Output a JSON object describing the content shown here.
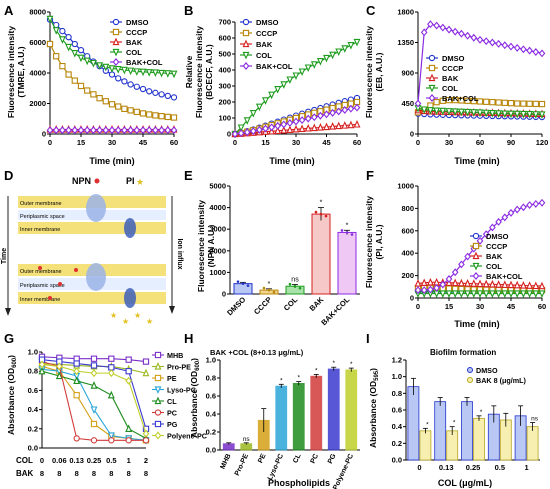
{
  "colors": {
    "DMSO": "#2233cc",
    "CCCP": "#b8860b",
    "BAK": "#d62020",
    "COL": "#1e9c1e",
    "BAK+COL": "#8a2be2",
    "MHB": "#7a2fc8",
    "Pro-PE": "#9bb81e",
    "PE": "#d4a017",
    "Lyso-PC": "#2ba6d8",
    "CL": "#1e8c1e",
    "PC": "#d23c3c",
    "PG": "#3b3bd1",
    "Polyene-PC": "#bfcf2a"
  },
  "panels": {
    "A": {
      "label": "A",
      "ylabel": "Fluorescence intensity",
      "ylabel2": "(TMRE, A.U.)",
      "xlabel": "Time (min)",
      "xticks": [
        "0",
        "15",
        "30",
        "45",
        "60"
      ],
      "yticks": [
        "0",
        "2000",
        "4000",
        "6000",
        "8000"
      ]
    },
    "B": {
      "label": "B",
      "ylabel": "Relative",
      "ylabel2": "Fluorescence intensity",
      "ylabel3": "(BCECF, A.U.)",
      "xlabel": "Time (min)",
      "xticks": [
        "0",
        "15",
        "30",
        "45",
        "60"
      ],
      "yticks": [
        "0",
        "100",
        "200",
        "300",
        "400",
        "500",
        "600",
        "700"
      ]
    },
    "C": {
      "label": "C",
      "ylabel": "Fluorescence intensity",
      "ylabel2": "(EB, A.U.)",
      "xlabel": "Time (min)",
      "xticks": [
        "0",
        "30",
        "60",
        "90",
        "120"
      ],
      "yticks": [
        "0",
        "450",
        "900",
        "1350",
        "1800"
      ]
    },
    "D": {
      "label": "D",
      "npn": "NPN",
      "pi": "PI",
      "time": "Time",
      "outer1": "Outer membrane",
      "peri1": "Periplasmic space",
      "inner1": "Inner membrane",
      "outer2": "Outer membrane",
      "peri2": "Periplasmic space",
      "inner2": "Inner membrane",
      "influx": "Ion influx"
    },
    "E": {
      "label": "E",
      "ylabel": "Fluorescence intensity",
      "ylabel2": "(NPN A.U.)",
      "yticks": [
        "0",
        "1000",
        "2000",
        "3000",
        "4000",
        "5000"
      ],
      "categories": [
        "DMSO",
        "CCCP",
        "COL",
        "BAK",
        "BAK+COL"
      ],
      "annotations": [
        "",
        "*",
        "ns",
        "*",
        "*"
      ]
    },
    "F": {
      "label": "F",
      "ylabel": "Fluorescence intensity",
      "ylabel2": "(PI, A.U.)",
      "xlabel": "Time (min)",
      "xticks": [
        "0",
        "15",
        "30",
        "45",
        "60"
      ],
      "yticks": [
        "0",
        "200",
        "400",
        "600",
        "800",
        "1000"
      ]
    },
    "G": {
      "label": "G",
      "ylabel": "Absorbance (OD",
      "ylabel_sub": "600",
      "ylabel_end": ")",
      "yticks": [
        "0.0",
        "0.2",
        "0.4",
        "0.6",
        "0.8",
        "1.0"
      ],
      "row1_label": "COL",
      "row2_label": "BAK",
      "row1": [
        "0",
        "0.06",
        "0.13",
        "0.25",
        "0.5",
        "1",
        "2"
      ],
      "row2": [
        "8",
        "8",
        "8",
        "8",
        "8",
        "8",
        "8"
      ]
    },
    "H": {
      "label": "H",
      "title": "BAK +COL (8+0.13 μg/mL)",
      "ylabel": "Absorbance (OD",
      "ylabel_sub": "600",
      "ylabel_end": ")",
      "xlabel": "Phospholipids",
      "yticks": [
        "0.0",
        "0.2",
        "0.4",
        "0.6",
        "0.8",
        "1.0"
      ],
      "categories": [
        "MHB",
        "Pro-PE",
        "PE",
        "Lyso-PC",
        "CL",
        "PC",
        "PG",
        "Polyene-PC"
      ],
      "annotations": [
        "",
        "ns",
        "",
        "*",
        "*",
        "*",
        "*",
        "*"
      ]
    },
    "I": {
      "label": "I",
      "title": "Biofilm formation",
      "ylabel": "Absorbance (OD",
      "ylabel_sub": "595",
      "ylabel_end": ")",
      "xlabel": "COL (μg/mL)",
      "yticks": [
        "0.0",
        "0.2",
        "0.4",
        "0.6",
        "0.8",
        "1.0",
        "1.2"
      ],
      "categories": [
        "0",
        "0.13",
        "0.25",
        "0.5",
        "1"
      ],
      "legend": [
        "DMSO",
        "BAK 8 (μg/mL)"
      ],
      "annotations": [
        "*",
        "*",
        "*",
        "",
        "ns"
      ]
    }
  },
  "legends": {
    "A": [
      "DMSO",
      "CCCP",
      "BAK",
      "COL",
      "BAK+COL"
    ],
    "B": [
      "DMSO",
      "CCCP",
      "BAK",
      "COL",
      "BAK+COL"
    ],
    "C": [
      "DMSO",
      "CCCP",
      "BAK",
      "COL",
      "BAK+COL"
    ],
    "F": [
      "DMSO",
      "CCCP",
      "BAK",
      "COL",
      "BAK+COL"
    ],
    "G": [
      "MHB",
      "Pro-PE",
      "PE",
      "Lyso-PC",
      "CL",
      "PC",
      "PG",
      "Polyene-PC"
    ]
  },
  "chart_data": [
    {
      "panel": "A",
      "type": "line",
      "xlabel": "Time (min)",
      "ylabel": "Fluorescence intensity (TMRE, A.U.)",
      "xlim": [
        0,
        60
      ],
      "ylim": [
        0,
        8000
      ],
      "x": [
        0,
        3,
        6,
        9,
        12,
        15,
        18,
        21,
        24,
        27,
        30,
        33,
        36,
        39,
        42,
        45,
        48,
        51,
        54,
        57,
        60
      ],
      "series": [
        {
          "name": "DMSO",
          "values": [
            7500,
            7150,
            6750,
            6350,
            5900,
            5500,
            5100,
            4750,
            4450,
            4150,
            3900,
            3650,
            3450,
            3250,
            3100,
            2950,
            2800,
            2700,
            2600,
            2500,
            2400
          ]
        },
        {
          "name": "CCCP",
          "values": [
            5900,
            5100,
            4450,
            3900,
            3500,
            3150,
            2850,
            2600,
            2350,
            2150,
            1950,
            1800,
            1650,
            1550,
            1450,
            1350,
            1280,
            1220,
            1170,
            1120,
            1080
          ]
        },
        {
          "name": "BAK",
          "values": [
            300,
            300,
            300,
            300,
            300,
            300,
            300,
            300,
            300,
            300,
            300,
            300,
            300,
            300,
            300,
            300,
            300,
            300,
            300,
            300,
            300
          ]
        },
        {
          "name": "COL",
          "values": [
            7550,
            6800,
            6200,
            5700,
            5300,
            5000,
            4800,
            4650,
            4500,
            4400,
            4300,
            4250,
            4200,
            4150,
            4100,
            4080,
            4050,
            4030,
            4000,
            3980,
            3950
          ]
        },
        {
          "name": "BAK+COL",
          "values": [
            250,
            250,
            250,
            250,
            250,
            250,
            250,
            250,
            250,
            250,
            250,
            250,
            250,
            250,
            250,
            250,
            250,
            250,
            250,
            250,
            250
          ]
        }
      ]
    },
    {
      "panel": "B",
      "type": "line",
      "xlabel": "Time (min)",
      "ylabel": "Relative Fluorescence intensity (BCECF, A.U.)",
      "xlim": [
        0,
        60
      ],
      "ylim": [
        0,
        700
      ],
      "x": [
        0,
        3,
        6,
        9,
        12,
        15,
        18,
        21,
        24,
        27,
        30,
        33,
        36,
        39,
        42,
        45,
        48,
        51,
        54,
        57,
        60
      ],
      "series": [
        {
          "name": "DMSO",
          "values": [
            0,
            8,
            18,
            28,
            40,
            52,
            65,
            77,
            90,
            102,
            115,
            127,
            139,
            150,
            162,
            173,
            184,
            195,
            205,
            215,
            225
          ]
        },
        {
          "name": "CCCP",
          "values": [
            0,
            6,
            14,
            24,
            34,
            45,
            56,
            67,
            78,
            89,
            100,
            111,
            122,
            132,
            142,
            152,
            162,
            172,
            181,
            190,
            200
          ]
        },
        {
          "name": "BAK",
          "values": [
            0,
            2,
            5,
            8,
            11,
            14,
            17,
            20,
            23,
            26,
            29,
            32,
            35,
            38,
            41,
            44,
            47,
            50,
            53,
            56,
            60
          ]
        },
        {
          "name": "COL",
          "values": [
            0,
            40,
            85,
            130,
            170,
            210,
            245,
            280,
            310,
            340,
            365,
            390,
            415,
            435,
            455,
            475,
            495,
            515,
            535,
            555,
            575
          ]
        },
        {
          "name": "BAK+COL",
          "values": [
            0,
            5,
            11,
            18,
            26,
            34,
            42,
            51,
            60,
            69,
            78,
            87,
            96,
            105,
            114,
            123,
            132,
            141,
            150,
            158,
            165
          ]
        }
      ]
    },
    {
      "panel": "C",
      "type": "line",
      "xlabel": "Time (min)",
      "ylabel": "Fluorescence intensity (EB, A.U.)",
      "xlim": [
        0,
        120
      ],
      "ylim": [
        0,
        1800
      ],
      "x": [
        0,
        6,
        12,
        18,
        24,
        30,
        36,
        42,
        48,
        54,
        60,
        66,
        72,
        78,
        84,
        90,
        96,
        102,
        108,
        114,
        120
      ],
      "series": [
        {
          "name": "DMSO",
          "values": [
            300,
            295,
            290,
            285,
            283,
            280,
            278,
            276,
            274,
            272,
            270,
            268,
            266,
            264,
            262,
            260,
            258,
            256,
            254,
            252,
            250
          ]
        },
        {
          "name": "CCCP",
          "values": [
            320,
            360,
            420,
            470,
            490,
            500,
            500,
            495,
            490,
            485,
            480,
            475,
            470,
            465,
            460,
            455,
            450,
            448,
            446,
            444,
            442
          ]
        },
        {
          "name": "BAK",
          "values": [
            350,
            340,
            335,
            330,
            328,
            326,
            324,
            322,
            320,
            318,
            316,
            314,
            312,
            310,
            308,
            306,
            304,
            302,
            300,
            298,
            296
          ]
        },
        {
          "name": "COL",
          "values": [
            380,
            360,
            350,
            345,
            340,
            336,
            332,
            328,
            324,
            320,
            316,
            312,
            308,
            304,
            300,
            298,
            296,
            294,
            292,
            290,
            288
          ]
        },
        {
          "name": "BAK+COL",
          "values": [
            450,
            1500,
            1620,
            1600,
            1570,
            1540,
            1510,
            1480,
            1450,
            1420,
            1390,
            1370,
            1350,
            1330,
            1310,
            1290,
            1270,
            1250,
            1230,
            1210,
            1190
          ]
        }
      ]
    },
    {
      "panel": "E",
      "type": "bar",
      "ylabel": "Fluorescence intensity (NPN A.U.)",
      "ylim": [
        0,
        5000
      ],
      "categories": [
        "DMSO",
        "CCCP",
        "COL",
        "BAK",
        "BAK+COL"
      ],
      "values": [
        480,
        180,
        360,
        3700,
        2850
      ],
      "errors": [
        60,
        60,
        80,
        300,
        100
      ]
    },
    {
      "panel": "F",
      "type": "line",
      "xlabel": "Time (min)",
      "ylabel": "Fluorescence intensity (PI, A.U.)",
      "xlim": [
        0,
        60
      ],
      "ylim": [
        0,
        1000
      ],
      "x": [
        0,
        3,
        6,
        9,
        12,
        15,
        18,
        21,
        24,
        27,
        30,
        33,
        36,
        39,
        42,
        45,
        48,
        51,
        54,
        57,
        60
      ],
      "series": [
        {
          "name": "DMSO",
          "values": [
            60,
            60,
            60,
            60,
            60,
            60,
            60,
            60,
            60,
            60,
            60,
            60,
            60,
            60,
            60,
            60,
            60,
            60,
            60,
            60,
            60
          ]
        },
        {
          "name": "CCCP",
          "values": [
            90,
            90,
            90,
            88,
            86,
            84,
            82,
            80,
            78,
            76,
            75,
            74,
            73,
            72,
            71,
            70,
            70,
            70,
            70,
            70,
            70
          ]
        },
        {
          "name": "BAK",
          "values": [
            130,
            135,
            140,
            140,
            138,
            136,
            134,
            132,
            130,
            128,
            126,
            124,
            122,
            120,
            118,
            116,
            114,
            112,
            110,
            108,
            106
          ]
        },
        {
          "name": "COL",
          "values": [
            40,
            40,
            40,
            40,
            40,
            40,
            40,
            40,
            40,
            40,
            40,
            40,
            40,
            40,
            40,
            40,
            40,
            40,
            40,
            40,
            40
          ]
        },
        {
          "name": "BAK+COL",
          "values": [
            70,
            70,
            75,
            90,
            120,
            170,
            230,
            300,
            370,
            440,
            510,
            570,
            630,
            680,
            720,
            760,
            790,
            810,
            830,
            840,
            850
          ]
        }
      ]
    },
    {
      "panel": "G",
      "type": "line",
      "ylabel": "Absorbance (OD600)",
      "ylim": [
        0,
        1.0
      ],
      "categories": [
        "0/8",
        "0.06/8",
        "0.13/8",
        "0.25/8",
        "0.5/8",
        "1/8",
        "2/8"
      ],
      "series": [
        {
          "name": "MHB",
          "values": [
            0.95,
            0.94,
            0.93,
            0.93,
            0.93,
            0.92,
            0.9
          ]
        },
        {
          "name": "Pro-PE",
          "values": [
            0.88,
            0.87,
            0.86,
            0.85,
            0.85,
            0.82,
            0.78
          ]
        },
        {
          "name": "PE",
          "values": [
            0.85,
            0.8,
            0.55,
            0.25,
            0.12,
            0.1,
            0.08
          ]
        },
        {
          "name": "Lyso-PC",
          "values": [
            0.82,
            0.8,
            0.75,
            0.4,
            0.13,
            0.1,
            0.08
          ]
        },
        {
          "name": "CL",
          "values": [
            0.8,
            0.75,
            0.7,
            0.65,
            0.55,
            0.2,
            0.1
          ]
        },
        {
          "name": "PC",
          "values": [
            0.9,
            0.85,
            0.1,
            0.08,
            0.08,
            0.08,
            0.08
          ]
        },
        {
          "name": "PG",
          "values": [
            0.92,
            0.9,
            0.88,
            0.86,
            0.84,
            0.8,
            0.2
          ]
        },
        {
          "name": "Polyene-PC",
          "values": [
            0.87,
            0.85,
            0.8,
            0.78,
            0.78,
            0.7,
            0.15
          ]
        }
      ]
    },
    {
      "panel": "H",
      "type": "bar",
      "xlabel": "Phospholipids",
      "ylabel": "Absorbance (OD600)",
      "ylim": [
        0,
        1.0
      ],
      "categories": [
        "MHB",
        "Pro-PE",
        "PE",
        "Lyso-PC",
        "CL",
        "PC",
        "PG",
        "Polyene-PC"
      ],
      "values": [
        0.07,
        0.07,
        0.33,
        0.71,
        0.74,
        0.82,
        0.9,
        0.89
      ],
      "errors": [
        0.01,
        0.01,
        0.13,
        0.02,
        0.02,
        0.02,
        0.02,
        0.02
      ]
    },
    {
      "panel": "I",
      "type": "bar",
      "xlabel": "COL (μg/mL)",
      "ylabel": "Absorbance (OD595)",
      "ylim": [
        0,
        1.2
      ],
      "categories": [
        "0",
        "0.13",
        "0.25",
        "0.5",
        "1"
      ],
      "series": [
        {
          "name": "DMSO",
          "values": [
            0.88,
            0.7,
            0.7,
            0.55,
            0.53
          ]
        },
        {
          "name": "BAK 8 (μg/mL)",
          "values": [
            0.35,
            0.35,
            0.5,
            0.48,
            0.4
          ]
        }
      ],
      "errors": [
        [
          0.1,
          0.05,
          0.05,
          0.1,
          0.12
        ],
        [
          0.03,
          0.05,
          0.03,
          0.08,
          0.05
        ]
      ]
    }
  ]
}
